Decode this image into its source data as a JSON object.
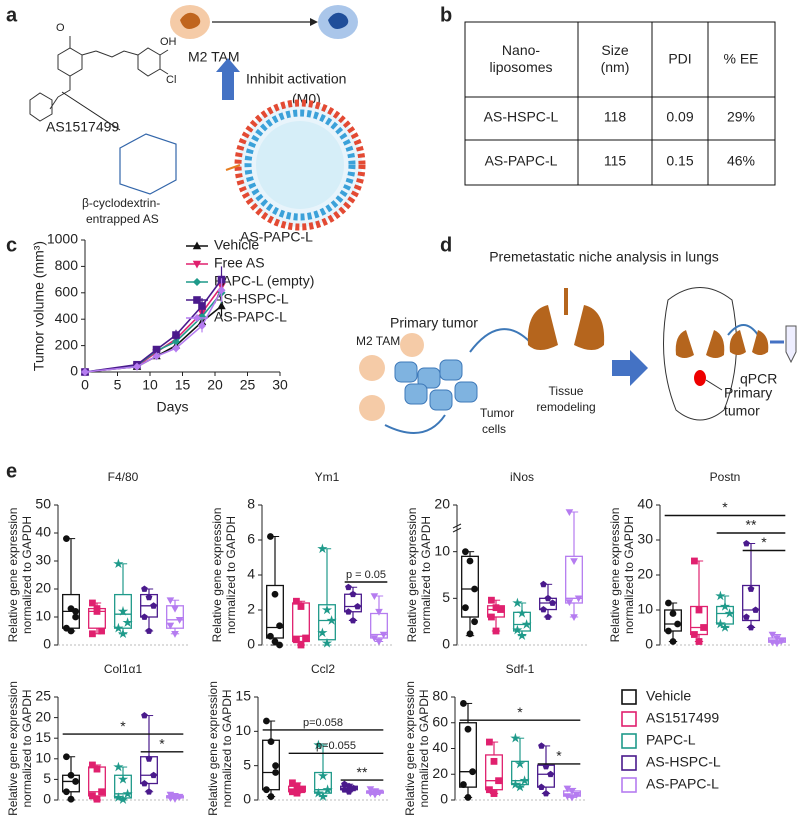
{
  "panel_letters": [
    "a",
    "b",
    "c",
    "d",
    "e"
  ],
  "diagram_a": {
    "ligand": "AS1517499",
    "carrier": [
      "β-cyclodextrin-",
      "entrapped AS"
    ],
    "liposome": "AS-PAPC-L",
    "cell": "M2 TAM",
    "effect": [
      "Inhibit activation",
      "(M0)"
    ]
  },
  "table": {
    "header": [
      [
        "Nano-",
        "liposomes"
      ],
      [
        "Size",
        "(nm)"
      ],
      [
        "PDI"
      ],
      [
        "% EE"
      ]
    ],
    "rows": [
      [
        "AS-HSPC-L",
        "118",
        "0.09",
        "29%"
      ],
      [
        "AS-PAPC-L",
        "115",
        "0.15",
        "46%"
      ]
    ]
  },
  "diagram_d": {
    "title": "Premetastatic niche analysis in lungs",
    "primary": "Primary tumor",
    "tam": "M2 TAM",
    "remodel": [
      "Tissue",
      "remodeling"
    ],
    "cells": [
      "Tumor",
      "cells"
    ],
    "site": [
      "Primary",
      "tumor"
    ],
    "assay": "qPCR"
  },
  "legend_e": [
    {
      "name": "Vehicle",
      "color": "#111111",
      "marker": "circle"
    },
    {
      "name": "AS1517499",
      "color": "#e0206e",
      "marker": "square"
    },
    {
      "name": "PAPC-L",
      "color": "#1f9a8a",
      "marker": "star"
    },
    {
      "name": "AS-HSPC-L",
      "color": "#4a1a8c",
      "marker": "pentagon"
    },
    {
      "name": "AS-PAPC-L",
      "color": "#b57cf0",
      "marker": "triangle-down"
    }
  ],
  "chart_data": [
    {
      "type": "line",
      "xlabel": "Days",
      "ylabel": "Tumor volume (mm³)",
      "x": [
        0,
        8,
        11,
        14,
        18,
        21
      ],
      "xlim": [
        0,
        30
      ],
      "xticks": [
        0,
        5,
        10,
        15,
        20,
        25,
        30
      ],
      "ylim": [
        0,
        1000
      ],
      "yticks": [
        0,
        200,
        400,
        600,
        800,
        1000
      ],
      "series": [
        {
          "name": "Vehicle",
          "color": "#111111",
          "marker": "triangle",
          "values": [
            0,
            40,
            120,
            200,
            380,
            500
          ],
          "errors": [
            0,
            10,
            20,
            30,
            50,
            80
          ]
        },
        {
          "name": "Free AS",
          "color": "#e0206e",
          "marker": "triangle-down",
          "values": [
            0,
            45,
            150,
            250,
            450,
            650
          ],
          "errors": [
            0,
            10,
            25,
            35,
            60,
            90
          ]
        },
        {
          "name": "PAPC-L (empty)",
          "color": "#1f9a8a",
          "marker": "diamond",
          "values": [
            0,
            50,
            160,
            230,
            420,
            600
          ],
          "errors": [
            0,
            10,
            25,
            30,
            55,
            80
          ]
        },
        {
          "name": "AS-HSPC-L",
          "color": "#4a1a8c",
          "marker": "square",
          "values": [
            0,
            55,
            170,
            280,
            500,
            700
          ],
          "errors": [
            0,
            12,
            25,
            40,
            60,
            100
          ]
        },
        {
          "name": "AS-PAPC-L",
          "color": "#b57cf0",
          "marker": "diamond",
          "values": [
            0,
            40,
            120,
            180,
            350,
            620
          ],
          "errors": [
            0,
            10,
            20,
            30,
            50,
            90
          ]
        }
      ]
    },
    {
      "type": "box",
      "title": "F4/80",
      "ylabel": [
        "Relative gene expression",
        "normalized to GAPDH"
      ],
      "ylim": [
        0,
        50
      ],
      "yticks": [
        0,
        10,
        20,
        30,
        40,
        50
      ],
      "boxes": [
        {
          "min": 5,
          "q1": 6,
          "median": 12,
          "q3": 18,
          "max": 38,
          "points": [
            38,
            13,
            10,
            6,
            5,
            12
          ]
        },
        {
          "min": 4,
          "q1": 6,
          "median": 12,
          "q3": 13,
          "max": 15,
          "points": [
            15,
            12,
            5,
            4,
            13
          ]
        },
        {
          "min": 4,
          "q1": 6,
          "median": 11,
          "q3": 18,
          "max": 29,
          "points": [
            29,
            12,
            8,
            6,
            4
          ]
        },
        {
          "min": 5,
          "q1": 10,
          "median": 14,
          "q3": 18,
          "max": 20,
          "points": [
            20,
            17,
            14,
            10,
            5
          ]
        },
        {
          "min": 4,
          "q1": 6,
          "median": 9,
          "q3": 14,
          "max": 16,
          "points": [
            16,
            13,
            9,
            7,
            4
          ]
        }
      ],
      "annotations": []
    },
    {
      "type": "box",
      "title": "Ym1",
      "ylabel": [
        "Relative gene expression",
        "normalized to GAPDH"
      ],
      "ylim": [
        0,
        8
      ],
      "yticks": [
        0,
        2,
        4,
        6,
        8
      ],
      "boxes": [
        {
          "min": 0,
          "q1": 0.4,
          "median": 1,
          "q3": 3.4,
          "max": 6.2,
          "points": [
            6.2,
            2.9,
            1.1,
            0.5,
            0.2,
            0
          ]
        },
        {
          "min": 0,
          "q1": 0.2,
          "median": 0.5,
          "q3": 2.4,
          "max": 2.5,
          "points": [
            2.5,
            2.2,
            0.4,
            0.3,
            0
          ]
        },
        {
          "min": 0,
          "q1": 0.3,
          "median": 1.4,
          "q3": 2.3,
          "max": 5.5,
          "points": [
            5.5,
            2,
            1.4,
            0.7,
            0.1
          ]
        },
        {
          "min": 1.4,
          "q1": 1.9,
          "median": 2.2,
          "q3": 2.9,
          "max": 3.3,
          "points": [
            3.3,
            2.9,
            2.2,
            1.9,
            1.4
          ]
        },
        {
          "min": 0.2,
          "q1": 0.4,
          "median": 0.6,
          "q3": 1.8,
          "max": 2.8,
          "points": [
            2.8,
            1.9,
            0.6,
            0.4,
            0.2
          ]
        }
      ],
      "annotations": [
        {
          "text": "p = 0.05",
          "groups": [
            3,
            4
          ],
          "y": 3.6
        }
      ]
    },
    {
      "type": "box",
      "title": "iNos",
      "ylabel": [
        "Relative gene expression",
        "normalized to GAPDH"
      ],
      "ylim": [
        0,
        20
      ],
      "yticks": [
        0,
        5,
        10,
        20
      ],
      "axis_break": [
        12,
        18
      ],
      "boxes": [
        {
          "min": 1,
          "q1": 3,
          "median": 6,
          "q3": 9.5,
          "max": 10,
          "points": [
            10,
            9,
            6,
            4,
            1.2,
            2.5
          ]
        },
        {
          "min": 1.5,
          "q1": 3,
          "median": 3.8,
          "q3": 4.2,
          "max": 4.8,
          "points": [
            4.8,
            4,
            3.8,
            3,
            1.5
          ]
        },
        {
          "min": 1,
          "q1": 1.5,
          "median": 2.2,
          "q3": 3.5,
          "max": 4.5,
          "points": [
            4.5,
            3.4,
            2.2,
            1.6,
            1
          ]
        },
        {
          "min": 3,
          "q1": 3.8,
          "median": 4.5,
          "q3": 5,
          "max": 6.5,
          "points": [
            6.5,
            5,
            4.5,
            3.8,
            3
          ]
        },
        {
          "min": 3,
          "q1": 4.5,
          "median": 5,
          "q3": 9.5,
          "max": 19.5,
          "points": [
            19.5,
            9,
            5,
            4.6,
            3
          ]
        }
      ],
      "annotations": []
    },
    {
      "type": "box",
      "title": "Postn",
      "ylabel": [
        "Relative gene expression",
        "normalized to GAPDH"
      ],
      "ylim": [
        0,
        40
      ],
      "yticks": [
        0,
        10,
        20,
        30,
        40
      ],
      "boxes": [
        {
          "min": 1,
          "q1": 4,
          "median": 6,
          "q3": 10,
          "max": 12,
          "points": [
            12,
            9,
            6,
            4,
            1
          ]
        },
        {
          "min": 1,
          "q1": 3,
          "median": 5,
          "q3": 11,
          "max": 24,
          "points": [
            24,
            10,
            5,
            3,
            1
          ]
        },
        {
          "min": 5,
          "q1": 6,
          "median": 9,
          "q3": 11,
          "max": 14,
          "points": [
            14,
            11,
            9,
            6,
            5
          ]
        },
        {
          "min": 5,
          "q1": 7,
          "median": 10,
          "q3": 17,
          "max": 29,
          "points": [
            29,
            16,
            10,
            8,
            5
          ]
        },
        {
          "min": 0.5,
          "q1": 0.8,
          "median": 1.2,
          "q3": 2,
          "max": 3,
          "points": [
            3,
            2,
            1.2,
            0.8,
            0.5
          ]
        }
      ],
      "annotations": [
        {
          "text": "*",
          "groups": [
            0,
            4
          ],
          "y": 37
        },
        {
          "text": "**",
          "groups": [
            2,
            4
          ],
          "y": 32
        },
        {
          "text": "*",
          "groups": [
            3,
            4
          ],
          "y": 27
        }
      ]
    },
    {
      "type": "box",
      "title": "Col1α1",
      "ylabel": [
        "Relative gene expression",
        "normalized to GAPDH"
      ],
      "ylim": [
        0,
        25
      ],
      "yticks": [
        0,
        5,
        10,
        15,
        20,
        25
      ],
      "boxes": [
        {
          "min": 0,
          "q1": 2,
          "median": 4.5,
          "q3": 6,
          "max": 10.5,
          "points": [
            10.5,
            6,
            4.5,
            2,
            0.2
          ]
        },
        {
          "min": 0,
          "q1": 1,
          "median": 2,
          "q3": 8,
          "max": 8.5,
          "points": [
            8.5,
            7.5,
            2,
            1,
            0.2
          ]
        },
        {
          "min": 0,
          "q1": 0.5,
          "median": 1.5,
          "q3": 6,
          "max": 8,
          "points": [
            8,
            5,
            1.5,
            0.6,
            0.1
          ]
        },
        {
          "min": 2,
          "q1": 4,
          "median": 6,
          "q3": 10.5,
          "max": 20.5,
          "points": [
            20.5,
            10,
            6,
            4,
            2
          ]
        },
        {
          "min": 0.3,
          "q1": 0.5,
          "median": 0.8,
          "q3": 1,
          "max": 1.3,
          "points": [
            1.3,
            1,
            0.8,
            0.5,
            0.3
          ]
        }
      ],
      "annotations": [
        {
          "text": "*",
          "groups": [
            0,
            4
          ],
          "y": 16
        },
        {
          "text": "*",
          "groups": [
            3,
            4
          ],
          "y": 11.7
        }
      ]
    },
    {
      "type": "box",
      "title": "Ccl2",
      "ylabel": [
        "Relative gene expression",
        "normalized to GAPDH"
      ],
      "ylim": [
        0,
        15
      ],
      "yticks": [
        0,
        5,
        10,
        15
      ],
      "boxes": [
        {
          "min": 0.5,
          "q1": 1.5,
          "median": 4,
          "q3": 8.7,
          "max": 11.5,
          "points": [
            11.5,
            8.5,
            4,
            1.5,
            0.5,
            5
          ]
        },
        {
          "min": 1,
          "q1": 1.2,
          "median": 1.5,
          "q3": 2,
          "max": 2.5,
          "points": [
            2.5,
            2,
            1.5,
            1.2,
            1
          ]
        },
        {
          "min": 0.5,
          "q1": 1,
          "median": 1.5,
          "q3": 4,
          "max": 8,
          "points": [
            8,
            3.5,
            1.5,
            1,
            0.5
          ]
        },
        {
          "min": 1.2,
          "q1": 1.5,
          "median": 1.7,
          "q3": 2,
          "max": 2.3,
          "points": [
            2.3,
            2,
            1.7,
            1.5,
            1.2
          ]
        },
        {
          "min": 0.8,
          "q1": 1,
          "median": 1.1,
          "q3": 1.3,
          "max": 1.6,
          "points": [
            1.6,
            1.3,
            1.1,
            1,
            0.8
          ]
        }
      ],
      "annotations": [
        {
          "text": "p=0.058",
          "groups": [
            0,
            4
          ],
          "y": 10.2
        },
        {
          "text": "p=0.055",
          "groups": [
            1,
            4
          ],
          "y": 6.8
        },
        {
          "text": "**",
          "groups": [
            3,
            4
          ],
          "y": 2.9
        }
      ]
    },
    {
      "type": "box",
      "title": "Sdf-1",
      "ylabel": [
        "Relative gene expression",
        "normalized to GAPDH"
      ],
      "ylim": [
        0,
        80
      ],
      "yticks": [
        0,
        20,
        40,
        60,
        80
      ],
      "boxes": [
        {
          "min": 2,
          "q1": 10,
          "median": 22,
          "q3": 60,
          "max": 75,
          "points": [
            75,
            55,
            22,
            12,
            2
          ]
        },
        {
          "min": 5,
          "q1": 8,
          "median": 15,
          "q3": 35,
          "max": 45,
          "points": [
            45,
            30,
            15,
            8,
            5
          ]
        },
        {
          "min": 10,
          "q1": 12,
          "median": 15,
          "q3": 30,
          "max": 48,
          "points": [
            48,
            28,
            15,
            12,
            10
          ]
        },
        {
          "min": 5,
          "q1": 10,
          "median": 20,
          "q3": 27,
          "max": 42,
          "points": [
            42,
            26,
            20,
            10,
            5
          ]
        },
        {
          "min": 2,
          "q1": 3,
          "median": 4,
          "q3": 7,
          "max": 9,
          "points": [
            9,
            7,
            4,
            3,
            2
          ]
        }
      ],
      "annotations": [
        {
          "text": "*",
          "groups": [
            0,
            4
          ],
          "y": 62
        },
        {
          "text": "*",
          "groups": [
            3,
            4
          ],
          "y": 28
        }
      ]
    }
  ]
}
